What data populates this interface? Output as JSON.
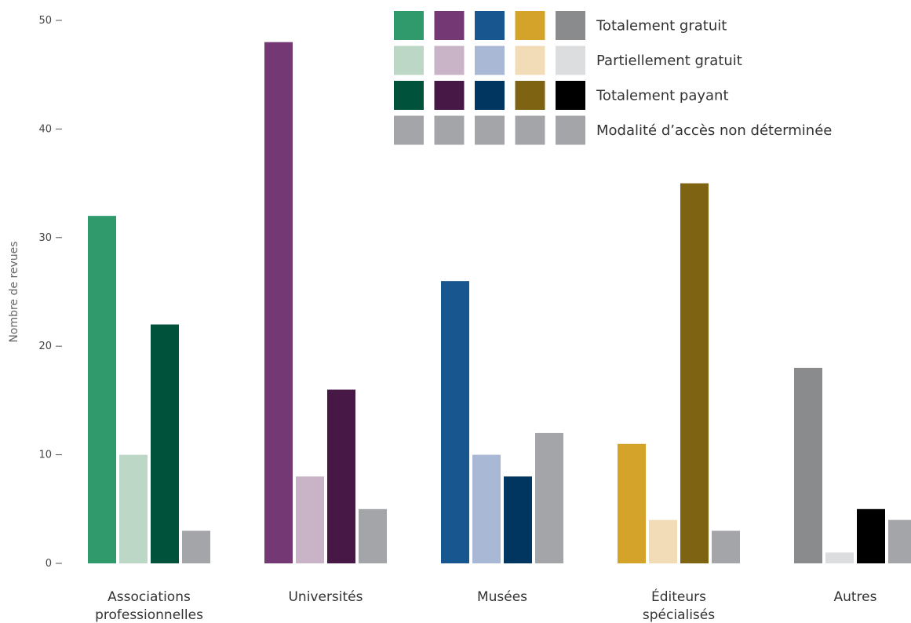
{
  "chart_data": {
    "type": "bar",
    "title": "",
    "xlabel": "",
    "ylabel": "Nombre de revues",
    "ylim": [
      0,
      50
    ],
    "yticks": [
      "0",
      "10",
      "20",
      "30",
      "40",
      "50"
    ],
    "grid": false,
    "legend_position": "top-right",
    "categories": [
      [
        "Associations",
        "professionnelles"
      ],
      [
        "Universités"
      ],
      [
        "Musées"
      ],
      [
        "Éditeurs",
        "spécialisés"
      ],
      [
        "Autres"
      ]
    ],
    "series": [
      {
        "name": "Totalement gratuit",
        "values": [
          32,
          48,
          26,
          11,
          18
        ],
        "colors": [
          "#319a6d",
          "#743874",
          "#17568e",
          "#d4a32a",
          "#8a8b8d"
        ]
      },
      {
        "name": "Partiellement gratuit",
        "values": [
          10,
          8,
          10,
          4,
          1
        ],
        "colors": [
          "#bdd7c7",
          "#c9b3c7",
          "#a9b8d5",
          "#f1dcb7",
          "#dcdddf"
        ]
      },
      {
        "name": "Totalement payant",
        "values": [
          22,
          16,
          8,
          35,
          5
        ],
        "colors": [
          "#00523a",
          "#471745",
          "#003660",
          "#7e6312",
          "#000000"
        ]
      },
      {
        "name": "Modalité d’accès non déterminée",
        "values": [
          3,
          5,
          12,
          3,
          4
        ],
        "colors": [
          "#a4a5a8",
          "#a4a5a8",
          "#a4a5a8",
          "#a4a5a8",
          "#a4a5a8"
        ]
      }
    ]
  }
}
